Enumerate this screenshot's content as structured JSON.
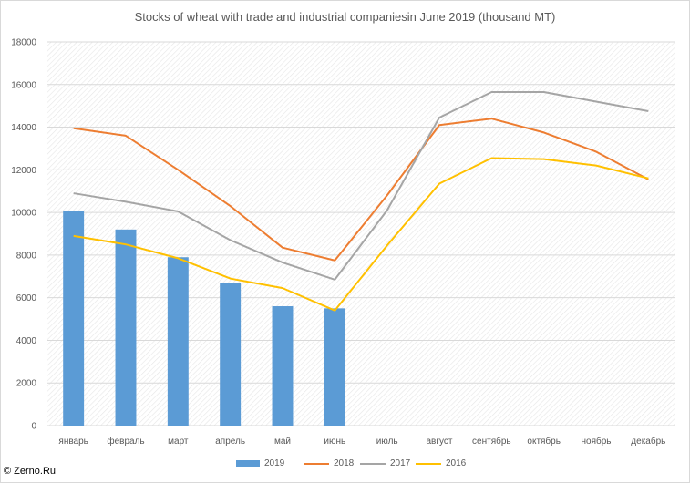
{
  "chart_data": {
    "type": "bar",
    "title": "Stocks of wheat with trade and industrial companiesin June 2019 (thousand MT)",
    "categories": [
      "январь",
      "февраль",
      "март",
      "апрель",
      "май",
      "июнь",
      "июль",
      "август",
      "сентябрь",
      "октябрь",
      "ноябрь",
      "декабрь"
    ],
    "ylim": [
      0,
      18000
    ],
    "yticks": [
      "0",
      "2000",
      "4000",
      "6000",
      "8000",
      "10000",
      "12000",
      "14000",
      "16000",
      "18000"
    ],
    "grid": true,
    "legend_position": "bottom",
    "series": [
      {
        "name": "2019",
        "type": "bar",
        "color": "#5b9bd5",
        "values": [
          10050,
          9200,
          7900,
          6700,
          5600,
          5500,
          null,
          null,
          null,
          null,
          null,
          null
        ]
      },
      {
        "name": "2018",
        "type": "line",
        "color": "#ed7d31",
        "values": [
          13950,
          13600,
          12000,
          10300,
          8350,
          7750,
          10800,
          14100,
          14400,
          13750,
          12850,
          11550
        ]
      },
      {
        "name": "2017",
        "type": "line",
        "color": "#a5a5a5",
        "values": [
          10900,
          10500,
          10050,
          8700,
          7650,
          6850,
          10100,
          14450,
          15650,
          15650,
          15200,
          14750
        ]
      },
      {
        "name": "2016",
        "type": "line",
        "color": "#ffc000",
        "values": [
          8900,
          8500,
          7850,
          6900,
          6450,
          5400,
          8450,
          11350,
          12550,
          12500,
          12200,
          11600
        ]
      }
    ]
  },
  "copyright": "© Zerno.Ru"
}
